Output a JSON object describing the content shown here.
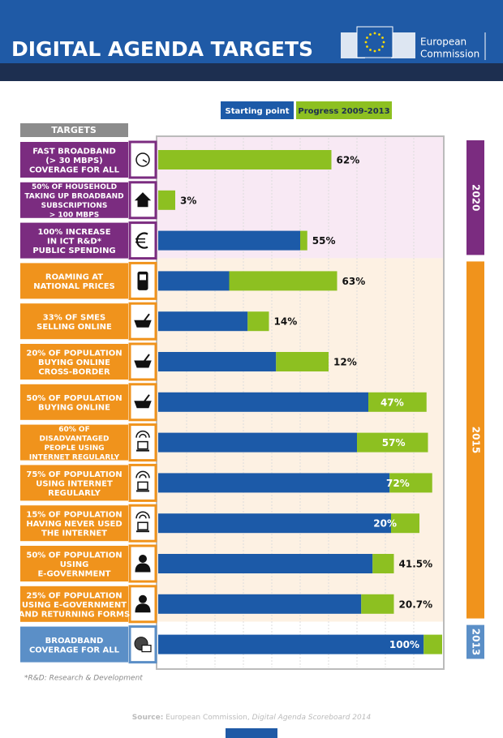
{
  "header": {
    "title": "DIGITAL AGENDA TARGETS",
    "logo": [
      "European",
      "Commission"
    ]
  },
  "chart_data": {
    "type": "bar",
    "orientation": "horizontal",
    "stacked": true,
    "targets_heading": "TARGETS",
    "categories": [
      [
        "FAST BROADBAND",
        "(> 30 MBPS)",
        "COVERAGE FOR ALL"
      ],
      [
        "50% OF HOUSEHOLD",
        "TAKING UP BROADBAND",
        "SUBSCRIPTIONS",
        "> 100 MBPS"
      ],
      [
        "100% INCREASE",
        "IN ICT R&D*",
        "PUBLIC SPENDING"
      ],
      [
        "ROAMING AT",
        "NATIONAL PRICES"
      ],
      [
        "33% OF SMES",
        "SELLING ONLINE"
      ],
      [
        "20% OF POPULATION",
        "BUYING ONLINE",
        "CROSS-BORDER"
      ],
      [
        "50% OF POPULATION",
        "BUYING ONLINE"
      ],
      [
        "60% OF",
        "DISADVANTAGED",
        "PEOPLE USING",
        "INTERNET REGULARLY"
      ],
      [
        "75% OF POPULATION",
        "USING INTERNET",
        "REGULARLY"
      ],
      [
        "15% OF POPULATION",
        "HAVING NEVER USED",
        "THE INTERNET"
      ],
      [
        "50% OF POPULATION",
        "USING",
        "E-GOVERNMENT"
      ],
      [
        "25% OF POPULATION",
        "USING E-GOVERNMENT",
        "AND RETURNING FORMS"
      ],
      [
        "BROADBAND",
        "COVERAGE FOR ALL"
      ]
    ],
    "results": [
      "62%",
      "3%",
      "55%",
      "63%",
      "14%",
      "12%",
      "47%",
      "57%",
      "72%",
      "20%",
      "41.5%",
      "20.7%",
      "100%"
    ],
    "series": [
      {
        "name": "Starting point",
        "color": "#1c5aa8",
        "values": [
          0,
          0,
          50,
          25,
          31.5,
          41.5,
          74,
          70,
          81.5,
          82,
          75.5,
          71.5,
          93.5
        ]
      },
      {
        "name": "Progress 2009-2013",
        "color": "#8dc021",
        "values": [
          61,
          6,
          2.5,
          38,
          7.5,
          18.5,
          20.5,
          25,
          15,
          10,
          7.5,
          11.5,
          6.5
        ]
      }
    ],
    "xlim": [
      0,
      100
    ],
    "groups": [
      {
        "label": "2020",
        "color": "#7b2c80",
        "size": 3
      },
      {
        "label": "2015",
        "color": "#f0931c",
        "size": 9
      },
      {
        "label": "2013",
        "color": "#5b8fc7",
        "size": 1
      }
    ]
  },
  "footnote": "*R&D: Research & Development",
  "source": {
    "prefix": "Source:",
    "org": "European Commission,",
    "title": "Digital Agenda Scoreboard 2014"
  }
}
